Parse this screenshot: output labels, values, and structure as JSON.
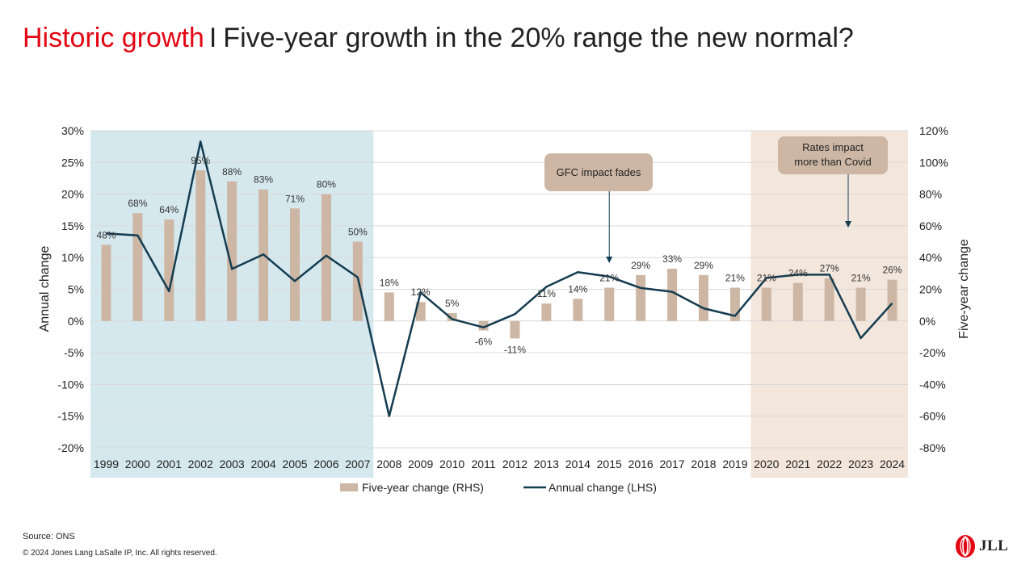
{
  "page": {
    "title_accent": "Historic growth",
    "title_separator": "I",
    "title_main": "Five-year growth in the 20% range the new normal?",
    "source": "Source: ONS",
    "copyright": "© 2024 Jones Lang LaSalle IP,  Inc.  All rights reserved.",
    "logo_text": "JLL",
    "logo_icon": "jll-flame-logo-icon"
  },
  "chart_data": {
    "type": "bar",
    "categories": [
      "1999",
      "2000",
      "2001",
      "2002",
      "2003",
      "2004",
      "2005",
      "2006",
      "2007",
      "2008",
      "2009",
      "2010",
      "2011",
      "2012",
      "2013",
      "2014",
      "2015",
      "2016",
      "2017",
      "2018",
      "2019",
      "2020",
      "2021",
      "2022",
      "2023",
      "2024"
    ],
    "series": [
      {
        "name": "Five-year change (RHS)",
        "type": "bar",
        "axis": "right",
        "color": "#cdb7a4",
        "values": [
          48,
          68,
          64,
          95,
          88,
          83,
          71,
          80,
          50,
          18,
          12,
          5,
          -6,
          -11,
          11,
          14,
          21,
          29,
          33,
          29,
          21,
          21,
          24,
          27,
          21,
          26
        ],
        "labels": [
          "48%",
          "68%",
          "64%",
          "95%",
          "88%",
          "83%",
          "71%",
          "80%",
          "50%",
          "18%",
          "12%",
          "5%",
          "-6%",
          "-11%",
          "11%",
          "14%",
          "21%",
          "29%",
          "33%",
          "29%",
          "21%",
          "21%",
          "24%",
          "27%",
          "21%",
          "26%"
        ]
      },
      {
        "name": "Annual change (LHS)",
        "type": "line",
        "axis": "left",
        "color": "#143c50",
        "values": [
          13.8,
          13.5,
          4.7,
          28.3,
          8.2,
          10.5,
          6.3,
          10.3,
          6.9,
          -15.0,
          4.5,
          0.3,
          -1.0,
          1.1,
          5.4,
          7.7,
          7.0,
          5.2,
          4.6,
          2.0,
          0.8,
          6.8,
          7.3,
          7.3,
          -2.7,
          2.8
        ]
      }
    ],
    "ylabel": "Annual change",
    "y2label": "Five-year change",
    "ylim": [
      -20,
      30
    ],
    "y2lim": [
      -80,
      120
    ],
    "yticks": [
      "30%",
      "25%",
      "20%",
      "15%",
      "10%",
      "5%",
      "0%",
      "-5%",
      "-10%",
      "-15%",
      "-20%"
    ],
    "y2ticks": [
      "120%",
      "100%",
      "80%",
      "60%",
      "40%",
      "20%",
      "0%",
      "-20%",
      "-40%",
      "-60%",
      "-80%"
    ],
    "grid": true,
    "legend": "bottom",
    "shaded_regions": [
      {
        "from": "1999",
        "to": "2007",
        "color": "#d5e8ee"
      },
      {
        "from": "2020",
        "to": "2024",
        "color": "#f3e6dc"
      }
    ],
    "annotations": [
      {
        "text": "GFC impact fades",
        "target": "2015"
      },
      {
        "lines": [
          "Rates impact",
          "more than Covid"
        ],
        "target": "2023"
      }
    ]
  }
}
